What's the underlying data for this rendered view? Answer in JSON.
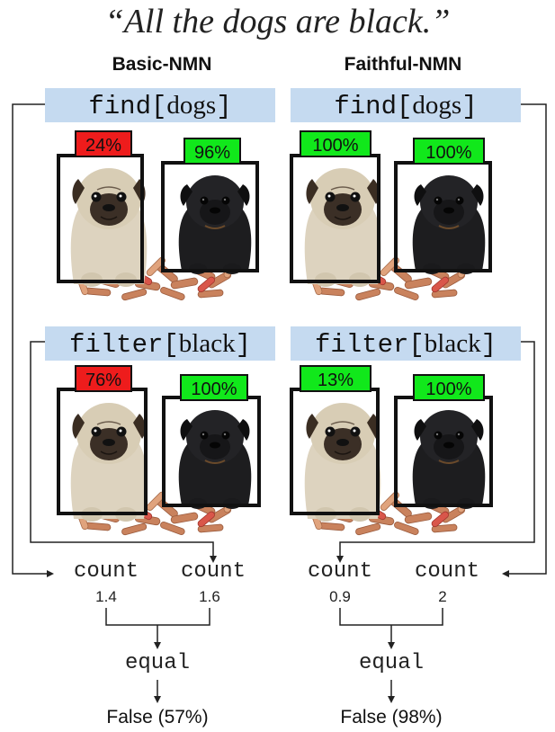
{
  "caption": "“All the dogs are black.”",
  "colors": {
    "op_box": "#c5daf0",
    "low_score": "#ee1c1c",
    "high_score": "#11e81b",
    "frame": "#111111"
  },
  "columns": [
    {
      "title": "Basic-NMN",
      "find": {
        "fn": "find",
        "arg": "dogs",
        "scores": [
          "24%",
          "96%"
        ],
        "score_colors": [
          "red",
          "green"
        ]
      },
      "filter": {
        "fn": "filter",
        "arg": "black",
        "scores": [
          "76%",
          "100%"
        ],
        "score_colors": [
          "red",
          "green"
        ]
      },
      "counts": [
        {
          "label": "count",
          "value": "1.4"
        },
        {
          "label": "count",
          "value": "1.6"
        }
      ],
      "equal": "equal",
      "result": "False (57%)"
    },
    {
      "title": "Faithful-NMN",
      "find": {
        "fn": "find",
        "arg": "dogs",
        "scores": [
          "100%",
          "100%"
        ],
        "score_colors": [
          "green",
          "green"
        ]
      },
      "filter": {
        "fn": "filter",
        "arg": "black",
        "scores": [
          "13%",
          "100%"
        ],
        "score_colors": [
          "green",
          "green"
        ]
      },
      "counts": [
        {
          "label": "count",
          "value": "0.9"
        },
        {
          "label": "count",
          "value": "2"
        }
      ],
      "equal": "equal",
      "result": "False (98%)"
    }
  ]
}
